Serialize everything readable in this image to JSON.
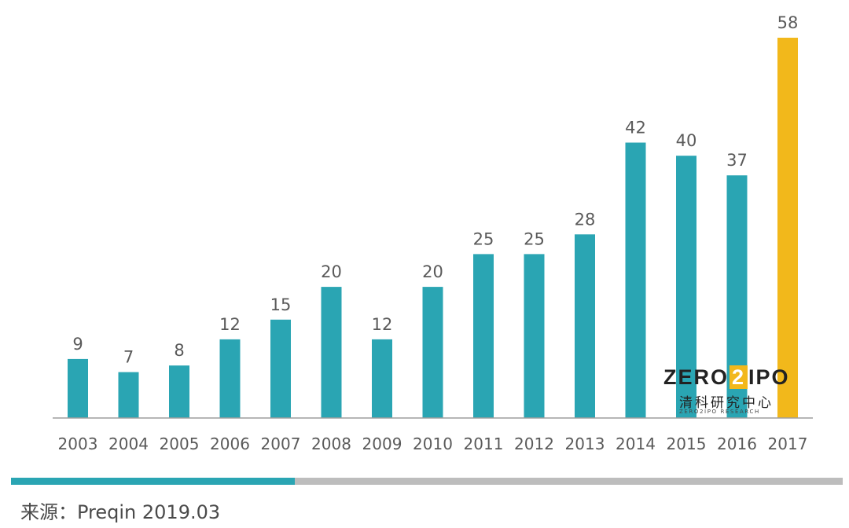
{
  "chart_data": {
    "type": "bar",
    "categories": [
      "2003",
      "2004",
      "2005",
      "2006",
      "2007",
      "2008",
      "2009",
      "2010",
      "2011",
      "2012",
      "2013",
      "2014",
      "2015",
      "2016",
      "2017"
    ],
    "values": [
      9,
      7,
      8,
      12,
      15,
      20,
      12,
      20,
      25,
      25,
      28,
      42,
      40,
      37,
      58
    ],
    "highlight_index": 14,
    "colors": {
      "bar": "#2aa5b3",
      "highlight": "#f2b81b",
      "axis": "#9e9e9e",
      "label": "#5a5a5a"
    },
    "data_labels": true,
    "ylim": [
      0,
      58
    ],
    "grid": false,
    "legend": "none",
    "title": "",
    "xlabel": "",
    "ylabel": ""
  },
  "footer": {
    "source": "来源：Preqin 2019.03"
  },
  "logo": {
    "main_left": "ZERO",
    "main_mid": "2",
    "main_right": "IPO",
    "cn": "清科研究中心",
    "sub": "ZERO2IPO RESEARCH"
  },
  "colors": {
    "divider_accent": "#2aa5b3",
    "divider_rest": "#bdbdbd"
  }
}
